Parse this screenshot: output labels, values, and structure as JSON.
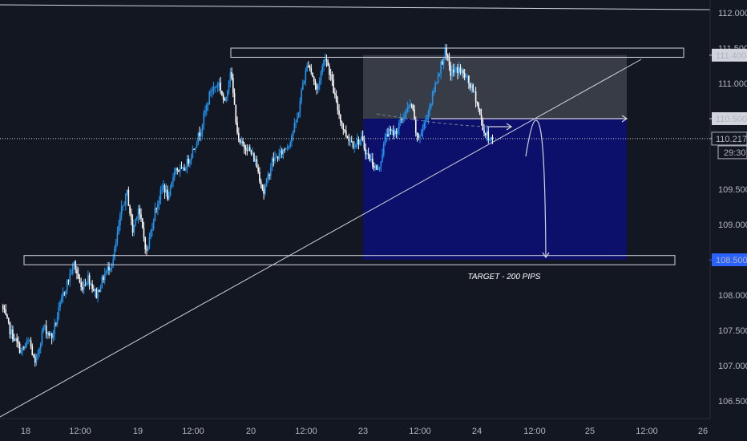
{
  "chart_data": {
    "type": "candlestick",
    "instrument_view": "price chart",
    "y_ticks": [
      "112.000",
      "111.500",
      "111.000",
      "110.500",
      "110.000",
      "109.500",
      "109.000",
      "108.500",
      "108.000",
      "107.500",
      "107.000",
      "106.500"
    ],
    "y_tick_values": [
      112.0,
      111.5,
      111.0,
      110.5,
      110.0,
      109.5,
      109.0,
      108.5,
      108.0,
      107.5,
      107.0,
      106.5
    ],
    "ylim": [
      106.33,
      112.12
    ],
    "x_ticks": [
      "18",
      "12:00",
      "19",
      "12:00",
      "20",
      "12:00",
      "23",
      "12:00",
      "24",
      "12:00",
      "25",
      "12:00",
      "26"
    ],
    "price_labels": [
      {
        "text": "111.400",
        "value": 111.4,
        "style": "grey"
      },
      {
        "text": "110.500",
        "value": 110.5,
        "style": "grey"
      },
      {
        "text": "110.217",
        "value": 110.217,
        "style": "current"
      },
      {
        "text": "29:30",
        "value": 110.217,
        "style": "countdown"
      },
      {
        "text": "108.500",
        "value": 108.5,
        "style": "blue"
      }
    ],
    "current_price": 110.217,
    "resistance_zone": {
      "low": 111.37,
      "high": 111.5
    },
    "support_zone": {
      "low": 108.43,
      "high": 108.56
    },
    "short_position": {
      "entry": 110.5,
      "stop": 111.4,
      "target": 108.5
    },
    "annotation": "TARGET - 200 PIPS",
    "colors": {
      "background": "#131722",
      "bull_candle": "#2196f3",
      "bear_candle": "#ffffff",
      "stop_zone": "#3a3e4a",
      "target_zone": "#0d1070",
      "lines": "#d1d4dc",
      "blue_label": "#2962ff"
    }
  }
}
